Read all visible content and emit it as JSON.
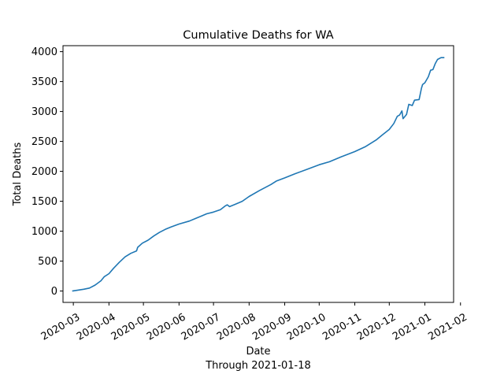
{
  "chart_data": {
    "type": "line",
    "title": "Cumulative Deaths for WA",
    "xlabel": "Date",
    "xlabel_sub": "Through 2021-01-18",
    "ylabel": "Total Deaths",
    "xlim": [
      "2020-02-21",
      "2021-01-26"
    ],
    "ylim": [
      -190,
      4100
    ],
    "x_ticks": [
      "2020-03-01",
      "2020-04-01",
      "2020-05-01",
      "2020-06-01",
      "2020-07-01",
      "2020-08-01",
      "2020-09-01",
      "2020-10-01",
      "2020-11-01",
      "2020-12-01",
      "2021-01-01",
      "2021-02-01"
    ],
    "x_tick_labels": [
      "2020-03",
      "2020-04",
      "2020-05",
      "2020-06",
      "2020-07",
      "2020-08",
      "2020-09",
      "2020-10",
      "2020-11",
      "2020-12",
      "2021-01",
      "2021-02"
    ],
    "y_ticks": [
      0,
      500,
      1000,
      1500,
      2000,
      2500,
      3000,
      3500,
      4000
    ],
    "y_tick_labels": [
      "0",
      "500",
      "1000",
      "1500",
      "2000",
      "2500",
      "3000",
      "3500",
      "4000"
    ],
    "grid": false,
    "legend": "none",
    "line_color": "#1f77b4",
    "series": [
      {
        "x": [
          "2020-02-29",
          "2020-03-05",
          "2020-03-10",
          "2020-03-15",
          "2020-03-20",
          "2020-03-25",
          "2020-03-28",
          "2020-04-01",
          "2020-04-05",
          "2020-04-10",
          "2020-04-15",
          "2020-04-20",
          "2020-04-25",
          "2020-04-26",
          "2020-04-30",
          "2020-05-05",
          "2020-05-10",
          "2020-05-15",
          "2020-05-20",
          "2020-05-25",
          "2020-06-01",
          "2020-06-10",
          "2020-06-15",
          "2020-06-20",
          "2020-06-25",
          "2020-07-01",
          "2020-07-07",
          "2020-07-11",
          "2020-07-13",
          "2020-07-15",
          "2020-07-20",
          "2020-07-26",
          "2020-08-01",
          "2020-08-10",
          "2020-08-20",
          "2020-08-25",
          "2020-09-01",
          "2020-09-10",
          "2020-09-20",
          "2020-10-01",
          "2020-10-10",
          "2020-10-20",
          "2020-11-01",
          "2020-11-10",
          "2020-11-20",
          "2020-11-25",
          "2020-12-01",
          "2020-12-05",
          "2020-12-08",
          "2020-12-10",
          "2020-12-12",
          "2020-12-13",
          "2020-12-16",
          "2020-12-18",
          "2020-12-21",
          "2020-12-23",
          "2020-12-27",
          "2020-12-29",
          "2020-12-30",
          "2021-01-01",
          "2021-01-04",
          "2021-01-06",
          "2021-01-08",
          "2021-01-10",
          "2021-01-12",
          "2021-01-15",
          "2021-01-18"
        ],
        "values": [
          0,
          15,
          30,
          50,
          100,
          170,
          240,
          290,
          380,
          480,
          570,
          630,
          670,
          730,
          800,
          850,
          920,
          980,
          1030,
          1070,
          1120,
          1170,
          1210,
          1250,
          1290,
          1320,
          1360,
          1420,
          1440,
          1410,
          1450,
          1500,
          1580,
          1680,
          1780,
          1840,
          1890,
          1960,
          2030,
          2110,
          2160,
          2240,
          2330,
          2410,
          2530,
          2610,
          2700,
          2800,
          2920,
          2940,
          3010,
          2880,
          2950,
          3120,
          3100,
          3190,
          3200,
          3390,
          3450,
          3480,
          3580,
          3690,
          3700,
          3800,
          3870,
          3900,
          3900
        ]
      }
    ]
  }
}
